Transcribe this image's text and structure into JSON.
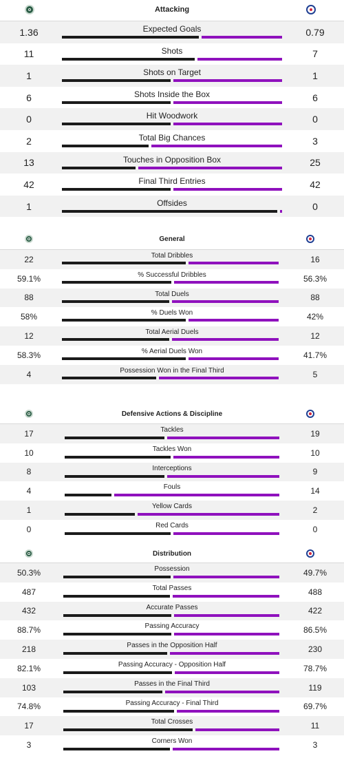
{
  "colors": {
    "home_bar": "#1b1b1b",
    "away_bar": "#8f11bd",
    "alt_row": "#f1f1f1"
  },
  "icons": {
    "home": "home-team-crest-icon",
    "away": "away-team-crest-icon"
  },
  "sections": [
    {
      "title": "Attacking",
      "rows": [
        {
          "label": "Expected Goals",
          "home": "1.36",
          "away": "0.79",
          "home_share": 0.63
        },
        {
          "label": "Shots",
          "home": "11",
          "away": "7",
          "home_share": 0.61
        },
        {
          "label": "Shots on Target",
          "home": "1",
          "away": "1",
          "home_share": 0.5
        },
        {
          "label": "Shots Inside the Box",
          "home": "6",
          "away": "6",
          "home_share": 0.5
        },
        {
          "label": "Hit Woodwork",
          "home": "0",
          "away": "0",
          "home_share": 0.5
        },
        {
          "label": "Total Big Chances",
          "home": "2",
          "away": "3",
          "home_share": 0.4
        },
        {
          "label": "Touches in Opposition Box",
          "home": "13",
          "away": "25",
          "home_share": 0.34
        },
        {
          "label": "Final Third Entries",
          "home": "42",
          "away": "42",
          "home_share": 0.5
        },
        {
          "label": "Offsides",
          "home": "1",
          "away": "0",
          "home_share": 0.99
        }
      ]
    },
    {
      "title": "General",
      "rows": [
        {
          "label": "Total Dribbles",
          "home": "22",
          "away": "16",
          "home_share": 0.58
        },
        {
          "label": "% Successful Dribbles",
          "home": "59.1%",
          "away": "56.3%",
          "home_share": 0.51
        },
        {
          "label": "Total Duels",
          "home": "88",
          "away": "88",
          "home_share": 0.5
        },
        {
          "label": "% Duels Won",
          "home": "58%",
          "away": "42%",
          "home_share": 0.58
        },
        {
          "label": "Total Aerial Duels",
          "home": "12",
          "away": "12",
          "home_share": 0.5
        },
        {
          "label": "% Aerial Duels Won",
          "home": "58.3%",
          "away": "41.7%",
          "home_share": 0.58
        },
        {
          "label": "Possession Won in the Final Third",
          "home": "4",
          "away": "5",
          "home_share": 0.44
        }
      ]
    },
    {
      "title": "Defensive Actions & Discipline",
      "rows": [
        {
          "label": "Tackles",
          "home": "17",
          "away": "19",
          "home_share": 0.47
        },
        {
          "label": "Tackles Won",
          "home": "10",
          "away": "10",
          "home_share": 0.5
        },
        {
          "label": "Interceptions",
          "home": "8",
          "away": "9",
          "home_share": 0.47
        },
        {
          "label": "Fouls",
          "home": "4",
          "away": "14",
          "home_share": 0.22
        },
        {
          "label": "Yellow Cards",
          "home": "1",
          "away": "2",
          "home_share": 0.33
        },
        {
          "label": "Red Cards",
          "home": "0",
          "away": "0",
          "home_share": 0.5
        }
      ]
    },
    {
      "title": "Distribution",
      "rows": [
        {
          "label": "Possession",
          "home": "50.3%",
          "away": "49.7%",
          "home_share": 0.503
        },
        {
          "label": "Total Passes",
          "home": "487",
          "away": "488",
          "home_share": 0.5
        },
        {
          "label": "Accurate Passes",
          "home": "432",
          "away": "422",
          "home_share": 0.506
        },
        {
          "label": "Passing Accuracy",
          "home": "88.7%",
          "away": "86.5%",
          "home_share": 0.506
        },
        {
          "label": "Passes in the Opposition Half",
          "home": "218",
          "away": "230",
          "home_share": 0.487
        },
        {
          "label": "Passing Accuracy - Opposition Half",
          "home": "82.1%",
          "away": "78.7%",
          "home_share": 0.51
        },
        {
          "label": "Passes in the Final Third",
          "home": "103",
          "away": "119",
          "home_share": 0.464
        },
        {
          "label": "Passing Accuracy - Final Third",
          "home": "74.8%",
          "away": "69.7%",
          "home_share": 0.518
        },
        {
          "label": "Total Crosses",
          "home": "17",
          "away": "11",
          "home_share": 0.607
        },
        {
          "label": "Corners Won",
          "home": "3",
          "away": "3",
          "home_share": 0.5
        }
      ]
    }
  ]
}
